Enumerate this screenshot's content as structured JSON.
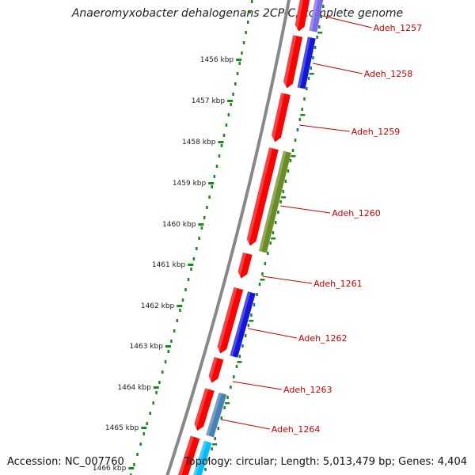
{
  "map": {
    "title": "Anaeromyxobacter dehalogenans 2CP-C, complete genome",
    "accession": "Accession: NC_007760",
    "summary": "Topology: circular; Length: 5,013,479 bp; Genes: 4,404",
    "position_markers": [
      "1456 kbp",
      "1457 kbp",
      "1458 kbp",
      "1459 kbp",
      "1460 kbp",
      "1461 kbp",
      "1462 kbp",
      "1463 kbp",
      "1464 kbp",
      "1465 kbp",
      "1466 kbp"
    ],
    "gene_labels": [
      "Adeh_1257",
      "Adeh_1258",
      "Adeh_1259",
      "Adeh_1260",
      "Adeh_1261",
      "Adeh_1262",
      "Adeh_1263",
      "Adeh_1264"
    ],
    "colors": {
      "backbone": "#888888",
      "cds": "#ff0000",
      "label": "#cc0000",
      "ticks": "#1a8a1a",
      "blue": "#1515e0",
      "olive": "#6b8e23",
      "steel": "#4682b4",
      "cyan": "#00bfff",
      "lavender": "#7b68ee"
    }
  }
}
